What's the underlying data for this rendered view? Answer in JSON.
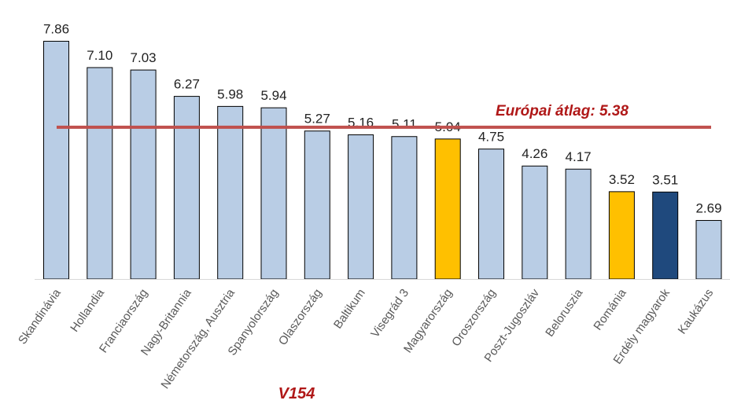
{
  "chart_data": {
    "type": "bar",
    "title": "",
    "xlabel": "V154",
    "ylabel": "",
    "ylim": [
      1,
      8
    ],
    "grid": false,
    "categories": [
      "Skandinávia",
      "Hollandia",
      "Franciaország",
      "Nagy-Britannia",
      "Németország, Ausztria",
      "Spanyolország",
      "Olaszország",
      "Baltikum",
      "Visegrád 3",
      "Magyarország",
      "Oroszország",
      "Poszt-Jugoszláv",
      "Beloruszia",
      "Románia",
      "Erdély magyarok",
      "Kaukázus"
    ],
    "values": [
      7.86,
      7.1,
      7.03,
      6.27,
      5.98,
      5.94,
      5.27,
      5.16,
      5.11,
      5.04,
      4.75,
      4.26,
      4.17,
      3.52,
      3.51,
      2.69
    ],
    "value_labels": [
      "7.86",
      "7.10",
      "7.03",
      "6.27",
      "5.98",
      "5.94",
      "5.27",
      "5.16",
      "5.11",
      "5.04",
      "4.75",
      "4.26",
      "4.17",
      "3.52",
      "3.51",
      "2.69"
    ],
    "bar_colors": [
      "#b9cde5",
      "#b9cde5",
      "#b9cde5",
      "#b9cde5",
      "#b9cde5",
      "#b9cde5",
      "#b9cde5",
      "#b9cde5",
      "#b9cde5",
      "#ffc000",
      "#b9cde5",
      "#b9cde5",
      "#b9cde5",
      "#ffc000",
      "#1f497d",
      "#b9cde5"
    ],
    "reference_line": {
      "label": "Európai átlag: 5.38",
      "value": 5.38,
      "color": "#c0504d"
    }
  }
}
